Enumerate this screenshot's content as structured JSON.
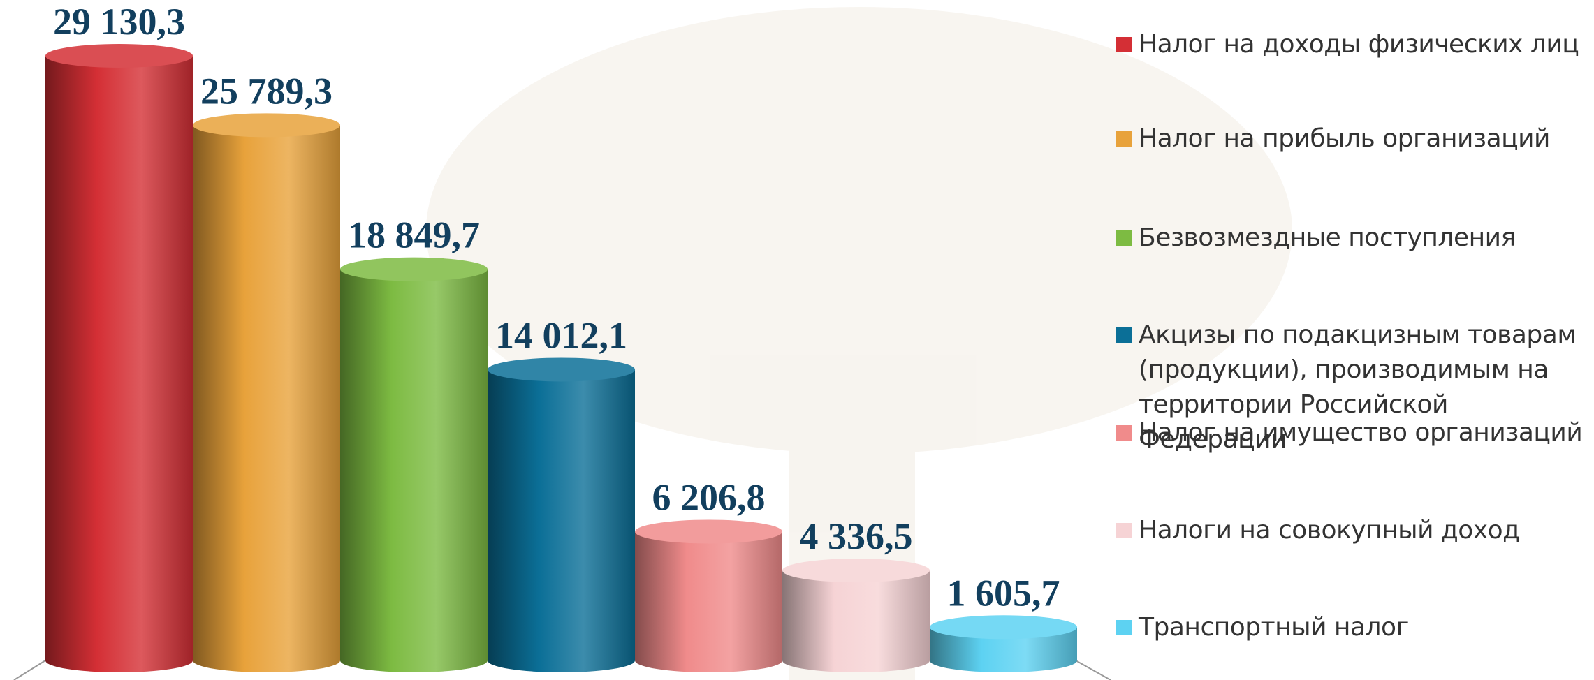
{
  "chart_data": {
    "type": "bar",
    "categories": [
      "Налог на доходы физических лиц",
      "Налог на прибыль организаций",
      "Безвозмездные поступления",
      "Акцизы по подакцизным товарам (продукции), производимым на территории Российской Федерации",
      "Налог на имущество организаций",
      "Налоги на совокупный доход",
      "Транспортный налог"
    ],
    "values": [
      29130.3,
      25789.3,
      18849.7,
      14012.1,
      6206.8,
      4336.5,
      1605.7
    ],
    "value_labels": [
      "29 130,3",
      "25 789,3",
      "18 849,7",
      "14 012,1",
      "6 206,8",
      "4 336,5",
      "1 605,7"
    ],
    "colors": [
      "#d42f35",
      "#e8a23b",
      "#7dbb42",
      "#0b6f97",
      "#f08b8b",
      "#f6d3d5",
      "#5dd2f2"
    ],
    "legend": "right"
  }
}
